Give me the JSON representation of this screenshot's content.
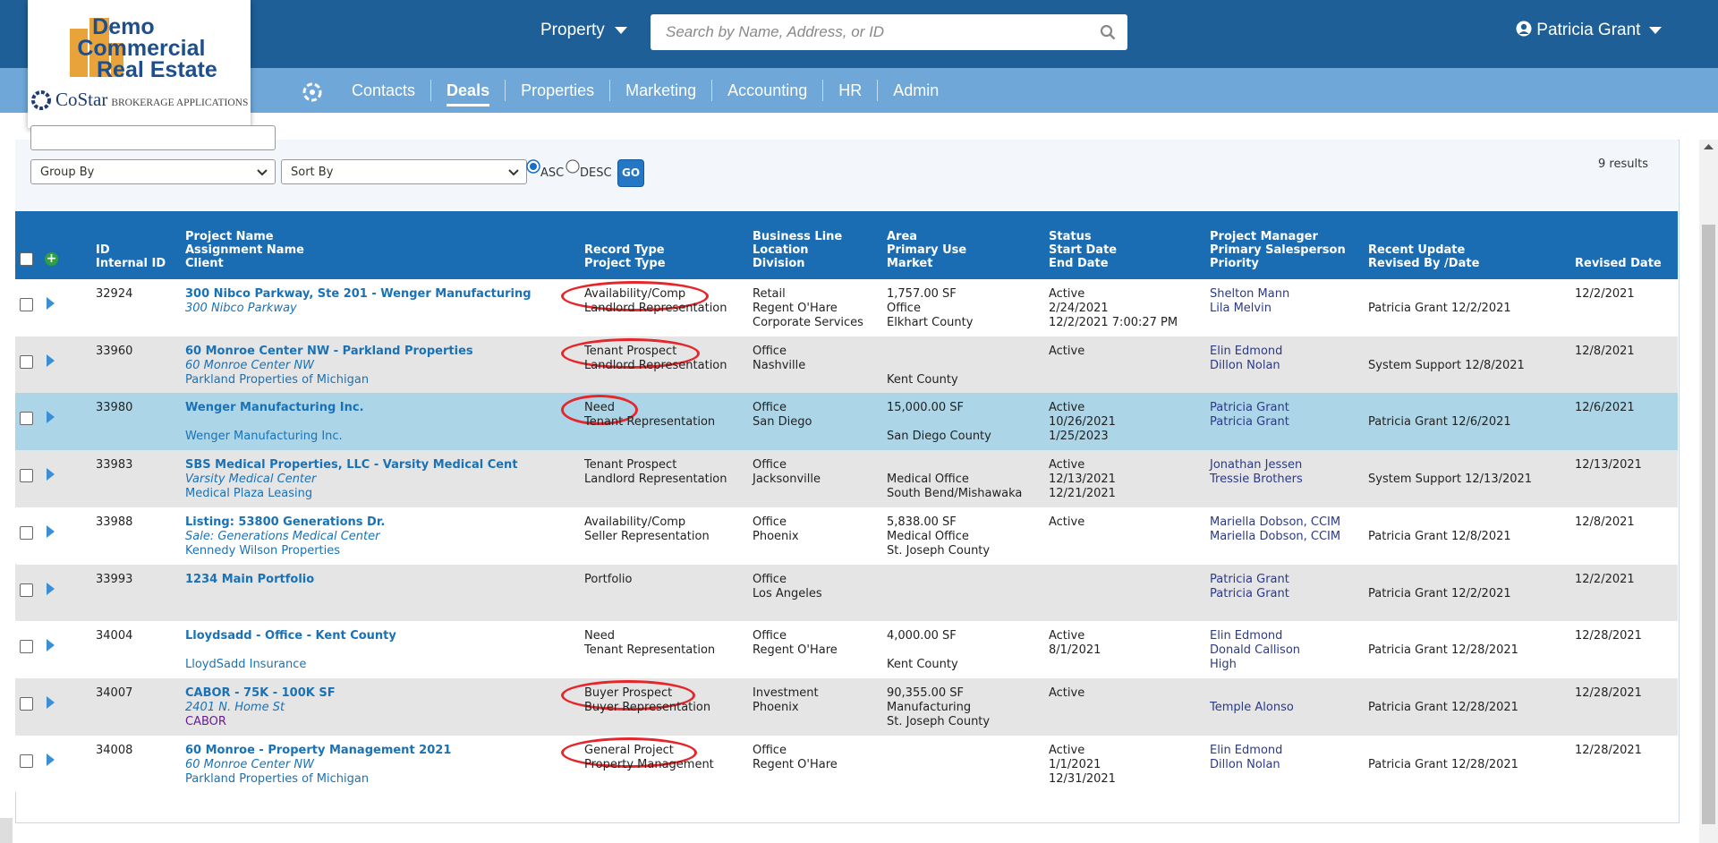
{
  "header": {
    "logo": {
      "line1": "Demo",
      "line2": "Commercial",
      "line3": "Real Estate",
      "brand": "CoStar",
      "brand_sub": "BROKERAGE APPLICATIONS"
    },
    "property_menu": "Property",
    "search_placeholder": "Search by Name, Address, or ID",
    "user": "Patricia Grant",
    "nav": [
      "Contacts",
      "Deals",
      "Properties",
      "Marketing",
      "Accounting",
      "HR",
      "Admin"
    ],
    "active_nav": 1
  },
  "toolbar": {
    "group_by": "Group By",
    "sort_by": "Sort By",
    "asc": "ASC",
    "desc": "DESC",
    "go": "GO",
    "results": "9 results"
  },
  "table": {
    "columns": [
      [
        "ID",
        "Internal ID"
      ],
      [
        "Project Name",
        "Assignment Name",
        "Client"
      ],
      [
        "Record Type",
        "Project Type"
      ],
      [
        "Business Line",
        "Location",
        "Division"
      ],
      [
        "Area",
        "Primary Use",
        "Market"
      ],
      [
        "Status",
        "Start Date",
        "End Date"
      ],
      [
        "Project Manager",
        "Primary Salesperson",
        "Priority"
      ],
      [
        "Recent Update",
        "Revised By /Date"
      ],
      [
        "Revised Date"
      ]
    ],
    "rows": [
      {
        "id": "32924",
        "name": "300 Nibco Parkway, Ste 201 - Wenger Manufacturing",
        "assignment": "300 Nibco Parkway",
        "record_type": "Availability/Comp",
        "project_type": "Landlord Representation",
        "business_line": "Retail",
        "location": "Regent O'Hare",
        "division": "Corporate Services",
        "area": "1,757.00 SF",
        "use": "Office",
        "market": "Elkhart County",
        "status": "Active",
        "start": "2/24/2021",
        "end": "12/2/2021 7:00:27 PM",
        "manager": "Shelton Mann",
        "salesperson": "Lila Melvin",
        "update": "Patricia Grant 12/2/2021",
        "revised": "12/2/2021",
        "circled": true
      },
      {
        "id": "33960",
        "name": "60 Monroe Center NW - Parkland Properties",
        "assignment": "60 Monroe Center NW",
        "client": "Parkland Properties of Michigan",
        "record_type": "Tenant Prospect",
        "project_type": "Landlord Representation",
        "business_line": "Office",
        "location": "Nashville",
        "market": "Kent County",
        "status": "Active",
        "manager": "Elin Edmond",
        "salesperson": "Dillon Nolan",
        "update": "System Support 12/8/2021",
        "revised": "12/8/2021",
        "circled": true
      },
      {
        "id": "33980",
        "name": "Wenger Manufacturing Inc.",
        "client": "Wenger Manufacturing Inc.",
        "record_type": "Need",
        "project_type": "Tenant Representation",
        "business_line": "Office",
        "location": "San Diego",
        "area": "15,000.00 SF",
        "market": "San Diego County",
        "status": "Active",
        "start": "10/26/2021",
        "end": "1/25/2023",
        "manager": "Patricia Grant",
        "salesperson": "Patricia Grant",
        "update": "Patricia Grant 12/6/2021",
        "revised": "12/6/2021",
        "circled": true,
        "selected": true
      },
      {
        "id": "33983",
        "name": "SBS Medical Properties, LLC - Varsity Medical Cent",
        "assignment": "Varsity Medical Center",
        "client": "Medical Plaza Leasing",
        "record_type": "Tenant Prospect",
        "project_type": "Landlord Representation",
        "business_line": "Office",
        "location": "Jacksonville",
        "use": "Medical Office",
        "market": "South Bend/Mishawaka",
        "status": "Active",
        "start": "12/13/2021",
        "end": "12/21/2021",
        "manager": "Jonathan Jessen",
        "salesperson": "Tressie Brothers",
        "update": "System Support 12/13/2021",
        "revised": "12/13/2021"
      },
      {
        "id": "33988",
        "name": "Listing: 53800 Generations Dr.",
        "assignment": "Sale: Generations Medical Center",
        "client": "Kennedy Wilson Properties",
        "record_type": "Availability/Comp",
        "project_type": "Seller Representation",
        "business_line": "Office",
        "location": "Phoenix",
        "area": "5,838.00 SF",
        "use": "Medical Office",
        "market": "St. Joseph County",
        "status": "Active",
        "manager": "Mariella Dobson, CCIM",
        "salesperson": "Mariella Dobson, CCIM",
        "update": "Patricia Grant 12/8/2021",
        "revised": "12/8/2021"
      },
      {
        "id": "33993",
        "name": "1234 Main Portfolio",
        "record_type": "Portfolio",
        "business_line": "Office",
        "location": "Los Angeles",
        "manager": "Patricia Grant",
        "salesperson": "Patricia Grant",
        "update": "Patricia Grant 12/2/2021",
        "revised": "12/2/2021"
      },
      {
        "id": "34004",
        "name": "Lloydsadd - Office - Kent County",
        "client": "LloydSadd Insurance",
        "record_type": "Need",
        "project_type": "Tenant Representation",
        "business_line": "Office",
        "location": "Regent O'Hare",
        "area": "4,000.00 SF",
        "market": "Kent County",
        "status": "Active",
        "start": "8/1/2021",
        "manager": "Elin Edmond",
        "salesperson": "Donald Callison",
        "priority": "High",
        "update": "Patricia Grant 12/28/2021",
        "revised": "12/28/2021"
      },
      {
        "id": "34007",
        "name": "CABOR - 75K - 100K SF",
        "assignment": "2401 N. Home St",
        "client": "CABOR",
        "record_type": "Buyer Prospect",
        "project_type": "Buyer Representation",
        "business_line": "Investment",
        "location": "Phoenix",
        "area": "90,355.00 SF",
        "use": "Manufacturing",
        "market": "St. Joseph County",
        "status": "Active",
        "salesperson": "Temple Alonso",
        "update": "Patricia Grant 12/28/2021",
        "revised": "12/28/2021",
        "circled": true,
        "visited": true
      },
      {
        "id": "34008",
        "name": "60 Monroe - Property Management 2021",
        "assignment": "60 Monroe Center NW",
        "client": "Parkland Properties of Michigan",
        "record_type": "General Project",
        "project_type": "Property Management",
        "business_line": "Office",
        "location": "Regent O'Hare",
        "status": "Active",
        "start": "1/1/2021",
        "end": "12/31/2021",
        "manager": "Elin Edmond",
        "salesperson": "Dillon Nolan",
        "update": "Patricia Grant 12/28/2021",
        "revised": "12/28/2021",
        "circled": true
      }
    ]
  }
}
